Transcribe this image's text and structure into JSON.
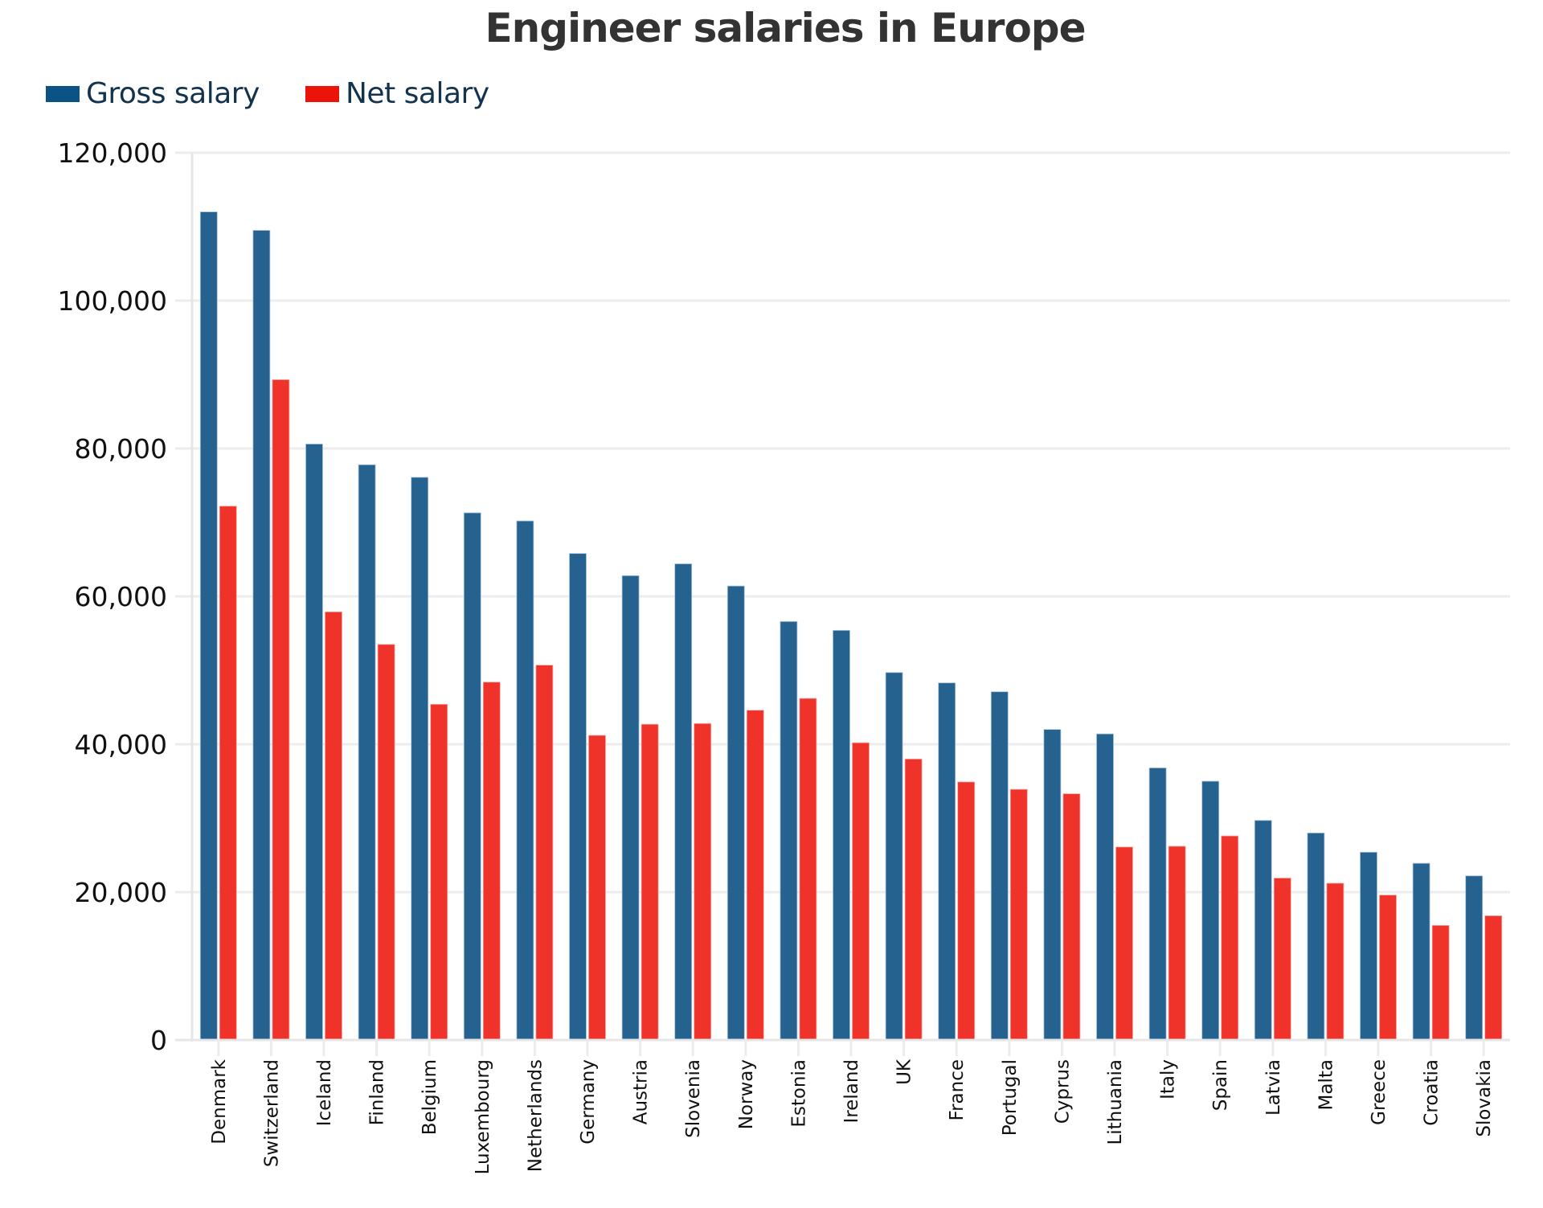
{
  "chart_data": {
    "type": "bar",
    "title": "Engineer salaries in Europe",
    "xlabel": "",
    "ylabel": "",
    "ylim": [
      0,
      120000
    ],
    "yticks": [
      0,
      20000,
      40000,
      60000,
      80000,
      100000,
      120000
    ],
    "ytick_labels": [
      "0",
      "20,000",
      "40,000",
      "60,000",
      "80,000",
      "100,000",
      "120,000"
    ],
    "grid": true,
    "legend_position": "top-left",
    "categories": [
      "Denmark",
      "Switzerland",
      "Iceland",
      "Finland",
      "Belgium",
      "Luxembourg",
      "Netherlands",
      "Germany",
      "Austria",
      "Slovenia",
      "Norway",
      "Estonia",
      "Ireland",
      "UK",
      "France",
      "Portugal",
      "Cyprus",
      "Lithuania",
      "Italy",
      "Spain",
      "Latvia",
      "Malta",
      "Greece",
      "Croatia",
      "Slovakia"
    ],
    "series": [
      {
        "name": "Gross salary",
        "color": "#26628f",
        "legend_color": "#0b5285",
        "values": [
          112000,
          109500,
          80600,
          77800,
          76100,
          71300,
          70200,
          65800,
          62800,
          64400,
          61400,
          56600,
          55400,
          49700,
          48300,
          47100,
          42000,
          41400,
          36800,
          35000,
          29700,
          28000,
          25400,
          23900,
          22200
        ]
      },
      {
        "name": "Net salary",
        "color": "#ef332b",
        "legend_color": "#ec1308",
        "values": [
          72200,
          89300,
          57900,
          53500,
          45400,
          48400,
          50700,
          41200,
          42700,
          42800,
          44600,
          46200,
          40200,
          38000,
          34900,
          33900,
          33300,
          26100,
          26200,
          27600,
          21900,
          21200,
          19600,
          15500,
          16800
        ]
      }
    ]
  },
  "legend": {
    "gross_label": "Gross salary",
    "net_label": "Net salary"
  }
}
